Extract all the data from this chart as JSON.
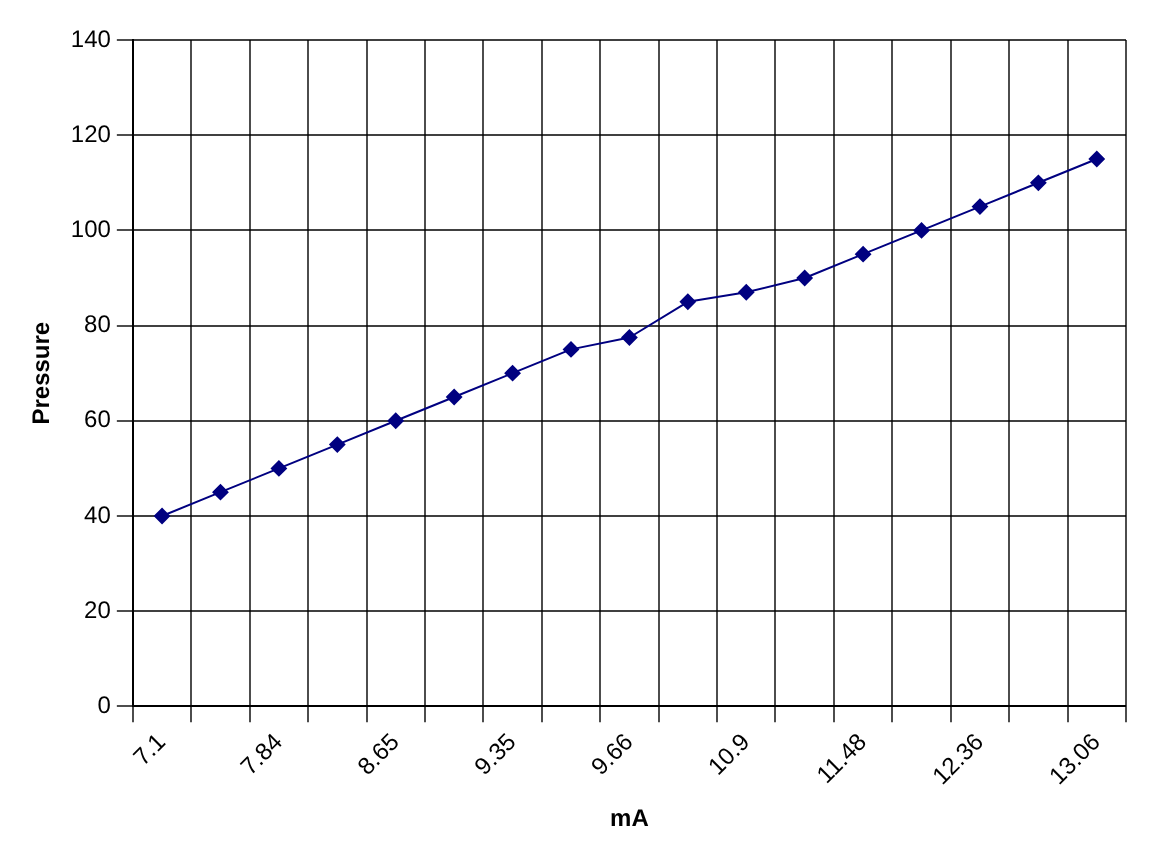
{
  "chart_data": {
    "type": "line",
    "xlabel": "mA",
    "ylabel": "Pressure",
    "categories": [
      "7.1",
      null,
      "7.84",
      null,
      "8.65",
      null,
      "9.35",
      null,
      "9.66",
      null,
      "10.9",
      null,
      "11.48",
      null,
      "12.36",
      null,
      "13.06"
    ],
    "series": [
      {
        "color": "#000080",
        "values": [
          40,
          45,
          50,
          55,
          60,
          65,
          70,
          75,
          77.5,
          85,
          87,
          90,
          95,
          100,
          105,
          110,
          115
        ]
      }
    ],
    "ylim": [
      0,
      140
    ],
    "yticks": [
      0,
      20,
      40,
      60,
      80,
      100,
      120,
      140
    ],
    "grid": true,
    "legend": false,
    "marker": "diamond",
    "line_style": "solid"
  }
}
